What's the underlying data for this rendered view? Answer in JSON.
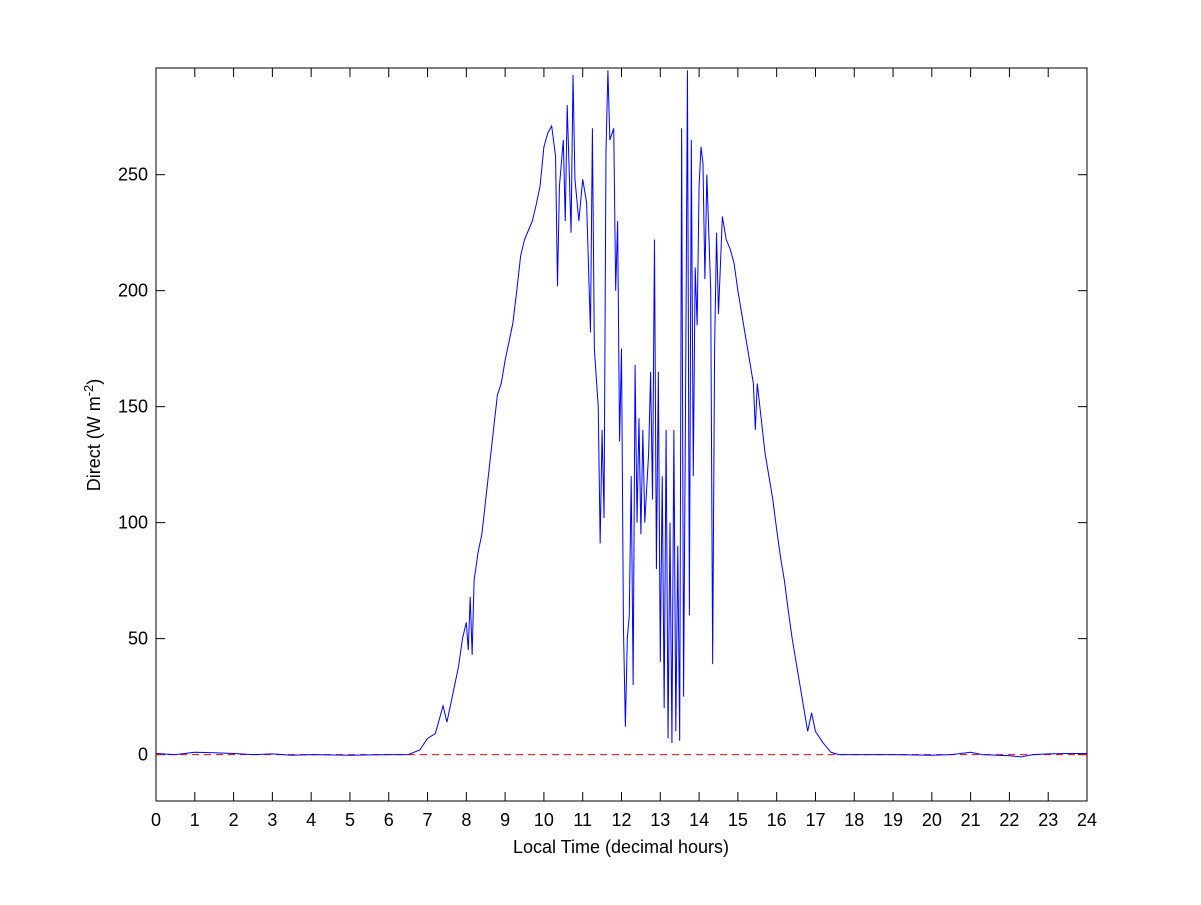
{
  "chart_data": {
    "type": "line",
    "x_label": "Local Time (decimal hours)",
    "y_label": {
      "text": "Direct (W m",
      "superscript": "-2",
      "suffix": ")"
    },
    "x": [
      0,
      0.5,
      1,
      1.5,
      2,
      2.5,
      3,
      3.5,
      4,
      5,
      6,
      6.5,
      6.8,
      7,
      7.2,
      7.3,
      7.4,
      7.5,
      7.6,
      7.7,
      7.8,
      7.9,
      8.0,
      8.05,
      8.1,
      8.15,
      8.2,
      8.3,
      8.4,
      8.5,
      8.6,
      8.7,
      8.8,
      8.9,
      9.0,
      9.1,
      9.2,
      9.3,
      9.4,
      9.5,
      9.6,
      9.7,
      9.8,
      9.9,
      10.0,
      10.1,
      10.2,
      10.3,
      10.35,
      10.4,
      10.5,
      10.55,
      10.6,
      10.7,
      10.75,
      10.8,
      10.9,
      11.0,
      11.1,
      11.2,
      11.25,
      11.3,
      11.4,
      11.45,
      11.5,
      11.55,
      11.6,
      11.65,
      11.7,
      11.8,
      11.85,
      11.9,
      11.95,
      12.0,
      12.05,
      12.1,
      12.15,
      12.2,
      12.25,
      12.3,
      12.35,
      12.4,
      12.45,
      12.5,
      12.55,
      12.6,
      12.7,
      12.75,
      12.8,
      12.85,
      12.9,
      12.95,
      13.0,
      13.05,
      13.1,
      13.15,
      13.2,
      13.25,
      13.3,
      13.35,
      13.4,
      13.45,
      13.5,
      13.55,
      13.6,
      13.65,
      13.7,
      13.75,
      13.8,
      13.85,
      13.9,
      13.95,
      14.0,
      14.05,
      14.1,
      14.15,
      14.2,
      14.3,
      14.35,
      14.4,
      14.45,
      14.5,
      14.6,
      14.7,
      14.8,
      14.9,
      15.0,
      15.1,
      15.2,
      15.3,
      15.4,
      15.45,
      15.5,
      15.6,
      15.7,
      15.8,
      15.9,
      16.0,
      16.1,
      16.2,
      16.3,
      16.4,
      16.5,
      16.6,
      16.7,
      16.8,
      16.9,
      17.0,
      17.2,
      17.4,
      17.6,
      18,
      19,
      20,
      20.5,
      21,
      21.3,
      22,
      22.3,
      22.6,
      23,
      23.5,
      24
    ],
    "series": [
      {
        "color": "#0000ff",
        "values": [
          0.5,
          0,
          1,
          0.8,
          0.5,
          0,
          0.3,
          -0.3,
          0,
          -0.3,
          0,
          0,
          2,
          7,
          9,
          15,
          21,
          14,
          22,
          30,
          38,
          50,
          57,
          45,
          68,
          43,
          75,
          87,
          95,
          110,
          125,
          140,
          155,
          160,
          170,
          178,
          186,
          200,
          215,
          222,
          226,
          230,
          237,
          245,
          262,
          268,
          271,
          258,
          202,
          245,
          265,
          230,
          280,
          225,
          293,
          248,
          230,
          248,
          238,
          182,
          270,
          175,
          150,
          91,
          140,
          102,
          260,
          295,
          265,
          270,
          200,
          230,
          135,
          175,
          55,
          12,
          50,
          60,
          120,
          30,
          168,
          100,
          145,
          95,
          140,
          100,
          130,
          165,
          110,
          222,
          80,
          165,
          40,
          120,
          20,
          140,
          7,
          100,
          5,
          140,
          10,
          90,
          6,
          270,
          25,
          150,
          295,
          60,
          265,
          120,
          210,
          185,
          245,
          262,
          255,
          205,
          250,
          200,
          39,
          175,
          225,
          190,
          232,
          222,
          218,
          212,
          200,
          190,
          180,
          170,
          160,
          140,
          160,
          145,
          130,
          120,
          110,
          97,
          85,
          75,
          62,
          50,
          40,
          30,
          20,
          10,
          18,
          10,
          5,
          1,
          0,
          0,
          0,
          -0.3,
          0,
          1,
          0,
          -0.5,
          -1,
          0,
          0.3,
          0.5,
          0.5
        ]
      }
    ],
    "hline": {
      "value": 0,
      "color": "#ff0000",
      "style": "dashed"
    },
    "xlim": [
      0,
      24
    ],
    "xticks": [
      0,
      1,
      2,
      3,
      4,
      5,
      6,
      7,
      8,
      9,
      10,
      11,
      12,
      13,
      14,
      15,
      16,
      17,
      18,
      19,
      20,
      21,
      22,
      23,
      24
    ],
    "ylim": [
      -20,
      296
    ],
    "yticks": [
      0,
      50,
      100,
      150,
      200,
      250
    ],
    "grid": false
  }
}
